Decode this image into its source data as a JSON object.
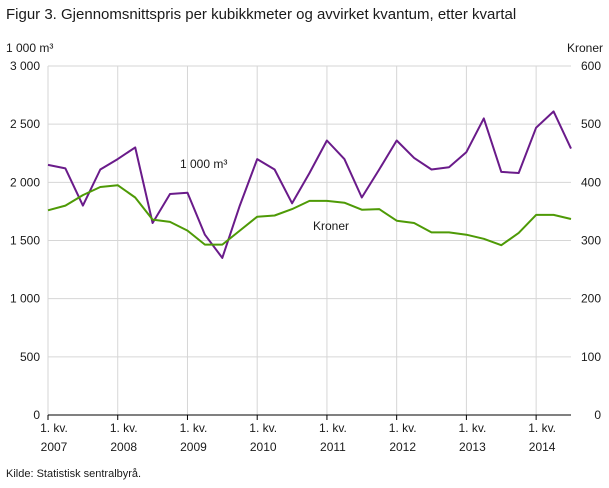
{
  "title": "Figur 3. Gjennomsnittspris per kubikkmeter og avvirket kvantum, etter kvartal",
  "source": "Kilde: Statistisk sentralbyrå.",
  "chart_data": {
    "type": "line",
    "title": "Figur 3. Gjennomsnittspris per kubikkmeter og avvirket kvantum, etter kvartal",
    "ylabel_left": "1 000 m³",
    "ylabel_right": "Kroner",
    "ylim_left": [
      0,
      3000
    ],
    "ylim_right": [
      0,
      600
    ],
    "yticks_left": [
      "0",
      "500",
      "1 000",
      "1 500",
      "2 000",
      "2 500",
      "3 000"
    ],
    "yticks_right": [
      "0",
      "100",
      "200",
      "300",
      "400",
      "500",
      "600"
    ],
    "x_tick_labels": [
      {
        "line1": "1. kv.",
        "line2": "2007"
      },
      {
        "line1": "1. kv.",
        "line2": "2008"
      },
      {
        "line1": "1. kv.",
        "line2": "2009"
      },
      {
        "line1": "1. kv.",
        "line2": "2010"
      },
      {
        "line1": "1. kv.",
        "line2": "2011"
      },
      {
        "line1": "1. kv.",
        "line2": "2012"
      },
      {
        "line1": "1. kv.",
        "line2": "2013"
      },
      {
        "line1": "1. kv.",
        "line2": "2014"
      }
    ],
    "grid": true,
    "series": [
      {
        "name": "1 000 m³",
        "axis": "left",
        "color": "#6a1b8a",
        "values": [
          2150,
          2120,
          1800,
          2110,
          2200,
          2300,
          1650,
          1900,
          1910,
          1550,
          1350,
          1800,
          2200,
          2110,
          1820,
          2080,
          2360,
          2200,
          1870,
          2110,
          2360,
          2210,
          2110,
          2130,
          2260,
          2550,
          2090,
          2080,
          2470,
          2610,
          2290
        ]
      },
      {
        "name": "Kroner",
        "axis": "right",
        "color": "#4e9a06",
        "values": [
          352,
          360,
          378,
          392,
          395,
          374,
          336,
          332,
          317,
          293,
          293,
          317,
          341,
          343,
          354,
          368,
          368,
          365,
          353,
          354,
          334,
          330,
          314,
          314,
          310,
          303,
          292,
          313,
          344,
          344,
          337
        ]
      }
    ]
  }
}
